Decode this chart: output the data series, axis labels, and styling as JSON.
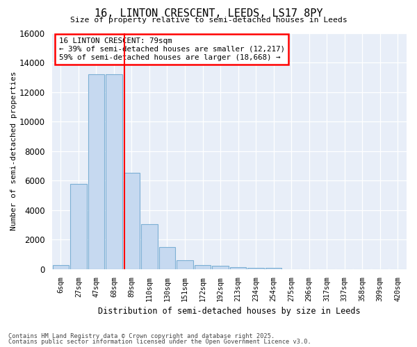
{
  "title1": "16, LINTON CRESCENT, LEEDS, LS17 8PY",
  "title2": "Size of property relative to semi-detached houses in Leeds",
  "xlabel": "Distribution of semi-detached houses by size in Leeds",
  "ylabel": "Number of semi-detached properties",
  "categories": [
    "6sqm",
    "27sqm",
    "47sqm",
    "68sqm",
    "89sqm",
    "110sqm",
    "130sqm",
    "151sqm",
    "172sqm",
    "192sqm",
    "213sqm",
    "234sqm",
    "254sqm",
    "275sqm",
    "296sqm",
    "317sqm",
    "337sqm",
    "358sqm",
    "399sqm",
    "420sqm"
  ],
  "values": [
    300,
    5800,
    13200,
    13200,
    6550,
    3050,
    1500,
    600,
    280,
    230,
    120,
    80,
    70,
    0,
    0,
    0,
    0,
    0,
    0,
    0
  ],
  "bar_color": "#c6d9f0",
  "bar_edgecolor": "#7bafd4",
  "redline_bin": 3.6,
  "redline_color": "red",
  "annotation_text": "16 LINTON CRESCENT: 79sqm\n← 39% of semi-detached houses are smaller (12,217)\n59% of semi-detached houses are larger (18,668) →",
  "annotation_box_color": "white",
  "annotation_box_edgecolor": "red",
  "ylim": [
    0,
    16000
  ],
  "yticks": [
    0,
    2000,
    4000,
    6000,
    8000,
    10000,
    12000,
    14000,
    16000
  ],
  "bg_color": "#e8eef8",
  "grid_color": "white",
  "footer1": "Contains HM Land Registry data © Crown copyright and database right 2025.",
  "footer2": "Contains public sector information licensed under the Open Government Licence v3.0."
}
